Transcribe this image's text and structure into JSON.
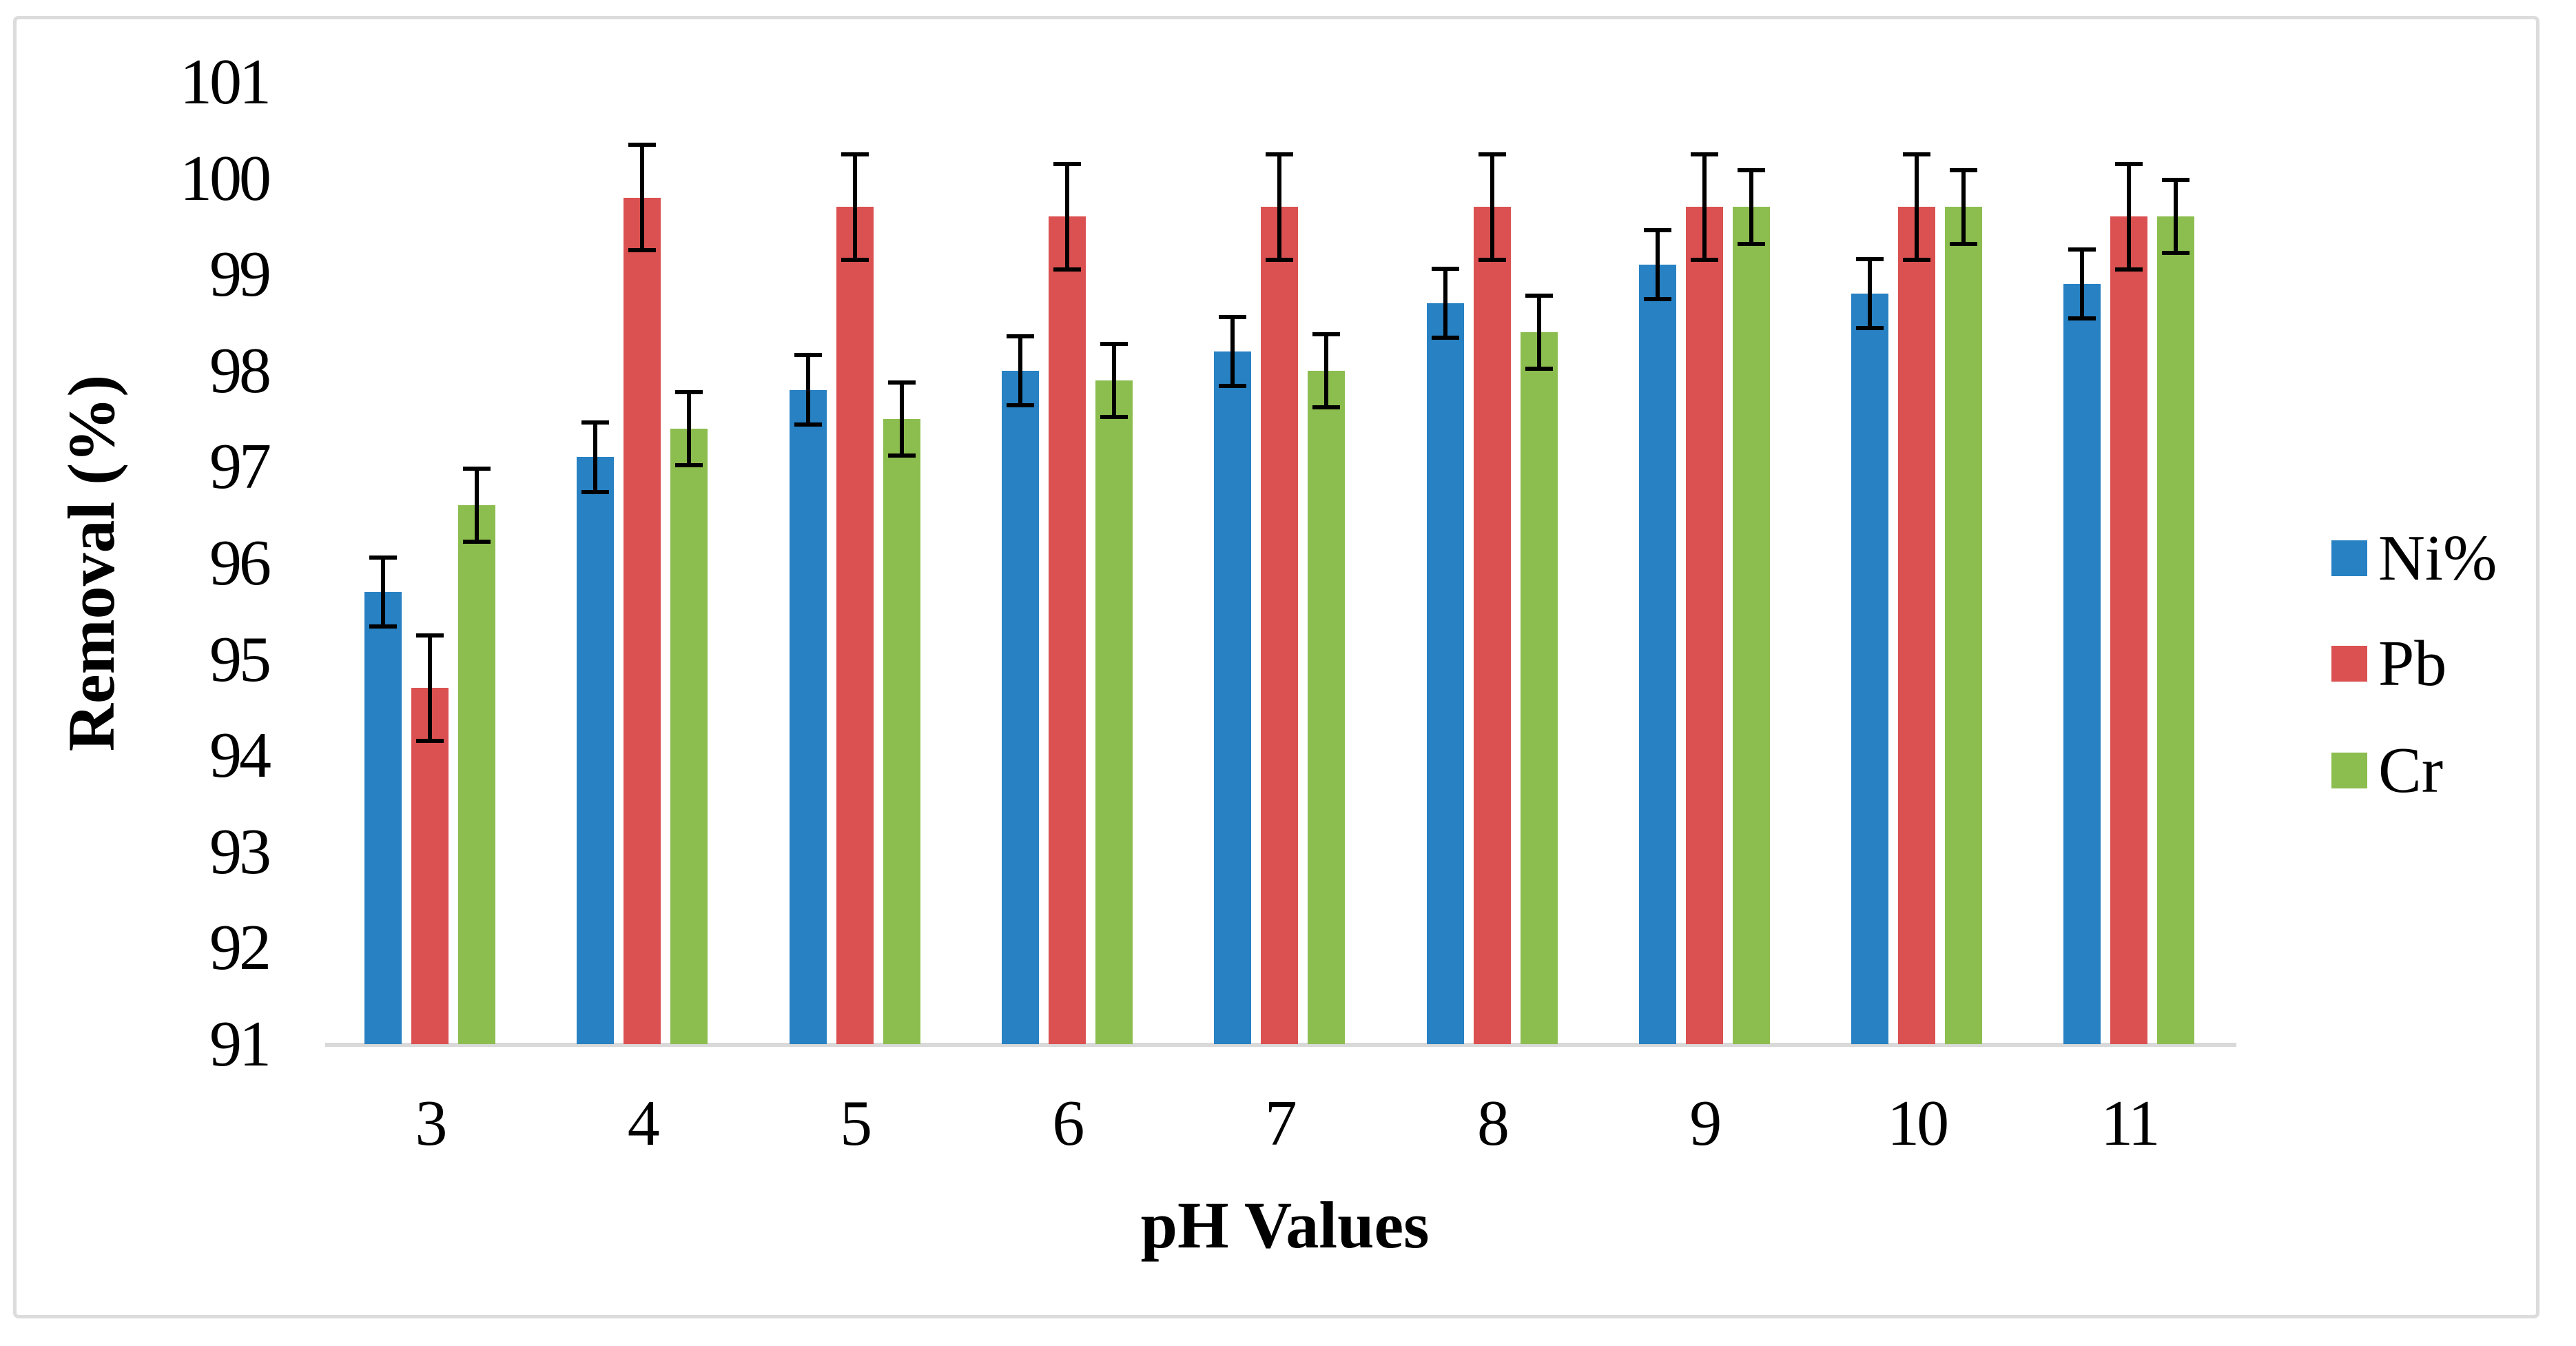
{
  "figure": {
    "background": "#ffffff",
    "border_color": "#dcdcdc"
  },
  "chart_data": {
    "type": "bar",
    "title": "",
    "xlabel": "pH Values",
    "ylabel": "Removal (%)",
    "categories": [
      "3",
      "4",
      "5",
      "6",
      "7",
      "8",
      "9",
      "10",
      "11"
    ],
    "y_ticks": [
      "91",
      "92",
      "93",
      "94",
      "95",
      "96",
      "97",
      "98",
      "99",
      "100",
      "101"
    ],
    "ylim": [
      91,
      101
    ],
    "grid": false,
    "legend_position": "right",
    "error_bars": true,
    "error_bar_color": "#000000",
    "axis_line_color": "#d9d9d9",
    "series": [
      {
        "name": "Ni%",
        "color": "#2781c3",
        "error": 0.36,
        "values": [
          95.7,
          97.1,
          97.8,
          98.0,
          98.2,
          98.7,
          99.1,
          98.8,
          98.9
        ]
      },
      {
        "name": "Pb",
        "color": "#db5151",
        "error": 0.55,
        "values": [
          94.7,
          99.8,
          99.7,
          99.6,
          99.7,
          99.7,
          99.7,
          99.7,
          99.6
        ]
      },
      {
        "name": "Cr",
        "color": "#8cbd4f",
        "error": 0.38,
        "values": [
          96.6,
          97.4,
          97.5,
          97.9,
          98.0,
          98.4,
          99.7,
          99.7,
          99.6
        ]
      }
    ]
  }
}
